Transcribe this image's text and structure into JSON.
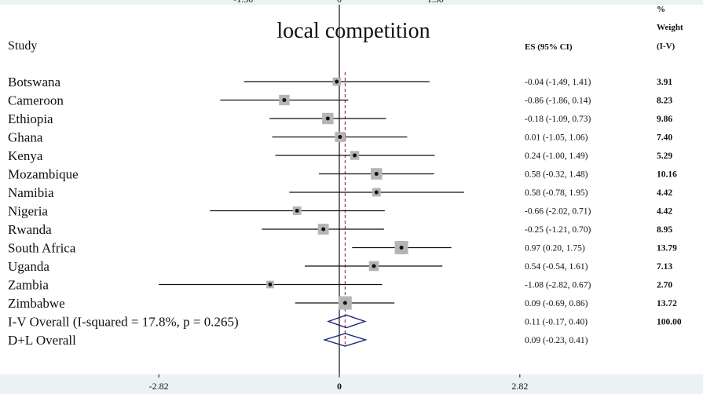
{
  "chart_data": {
    "type": "forest",
    "title": "local competition",
    "top_tick_fragments": [
      "-1.50",
      "0",
      "1.50"
    ],
    "headers": {
      "study": "Study",
      "es": "ES (95% CI)",
      "weight_line1": "%",
      "weight_line2": "Weight",
      "weight_line3": "(I-V)"
    },
    "xlim": [
      -2.82,
      2.82
    ],
    "x_ticks": [
      {
        "value": -2.82,
        "label": "-2.82"
      },
      {
        "value": 0,
        "label": "0"
      },
      {
        "value": 2.82,
        "label": "2.82"
      }
    ],
    "reference_line": 0.09,
    "studies": [
      {
        "name": "Botswana",
        "es": -0.04,
        "lo": -1.49,
        "hi": 1.41,
        "es_text": "-0.04 (-1.49, 1.41)",
        "weight": 3.91,
        "weight_text": "3.91"
      },
      {
        "name": "Cameroon",
        "es": -0.86,
        "lo": -1.86,
        "hi": 0.14,
        "es_text": "-0.86 (-1.86, 0.14)",
        "weight": 8.23,
        "weight_text": "8.23"
      },
      {
        "name": "Ethiopia",
        "es": -0.18,
        "lo": -1.09,
        "hi": 0.73,
        "es_text": "-0.18 (-1.09, 0.73)",
        "weight": 9.86,
        "weight_text": "9.86"
      },
      {
        "name": "Ghana",
        "es": 0.01,
        "lo": -1.05,
        "hi": 1.06,
        "es_text": "0.01 (-1.05, 1.06)",
        "weight": 7.4,
        "weight_text": "7.40"
      },
      {
        "name": "Kenya",
        "es": 0.24,
        "lo": -1.0,
        "hi": 1.49,
        "es_text": "0.24 (-1.00, 1.49)",
        "weight": 5.29,
        "weight_text": "5.29"
      },
      {
        "name": "Mozambique",
        "es": 0.58,
        "lo": -0.32,
        "hi": 1.48,
        "es_text": "0.58 (-0.32, 1.48)",
        "weight": 10.16,
        "weight_text": "10.16"
      },
      {
        "name": "Namibia",
        "es": 0.58,
        "lo": -0.78,
        "hi": 1.95,
        "es_text": "0.58 (-0.78, 1.95)",
        "weight": 4.42,
        "weight_text": "4.42"
      },
      {
        "name": "Nigeria",
        "es": -0.66,
        "lo": -2.02,
        "hi": 0.71,
        "es_text": "-0.66 (-2.02, 0.71)",
        "weight": 4.42,
        "weight_text": "4.42"
      },
      {
        "name": "Rwanda",
        "es": -0.25,
        "lo": -1.21,
        "hi": 0.7,
        "es_text": "-0.25 (-1.21, 0.70)",
        "weight": 8.95,
        "weight_text": "8.95"
      },
      {
        "name": "South Africa",
        "es": 0.97,
        "lo": 0.2,
        "hi": 1.75,
        "es_text": "0.97 (0.20, 1.75)",
        "weight": 13.79,
        "weight_text": "13.79"
      },
      {
        "name": "Uganda",
        "es": 0.54,
        "lo": -0.54,
        "hi": 1.61,
        "es_text": "0.54 (-0.54, 1.61)",
        "weight": 7.13,
        "weight_text": "7.13"
      },
      {
        "name": "Zambia",
        "es": -1.08,
        "lo": -2.82,
        "hi": 0.67,
        "es_text": "-1.08 (-2.82, 0.67)",
        "weight": 2.7,
        "weight_text": "2.70"
      },
      {
        "name": "Zimbabwe",
        "es": 0.09,
        "lo": -0.69,
        "hi": 0.86,
        "es_text": "0.09 (-0.69, 0.86)",
        "weight": 13.72,
        "weight_text": "13.72"
      }
    ],
    "overall": [
      {
        "name": "I-V Overall  (I-squared = 17.8%, p = 0.265)",
        "es": 0.11,
        "lo": -0.17,
        "hi": 0.4,
        "es_text": "0.11 (-0.17, 0.40)",
        "weight_text": "100.00"
      },
      {
        "name": "D+L Overall",
        "es": 0.09,
        "lo": -0.23,
        "hi": 0.41,
        "es_text": "0.09 (-0.23, 0.41)",
        "weight_text": ""
      }
    ],
    "colors": {
      "ci_line": "#111111",
      "weight_box": "#b5b5b5",
      "point": "#111111",
      "diamond": "#1a237e",
      "reference_line": "#8b1a1a",
      "background_strip": "#eaf2f3"
    }
  }
}
